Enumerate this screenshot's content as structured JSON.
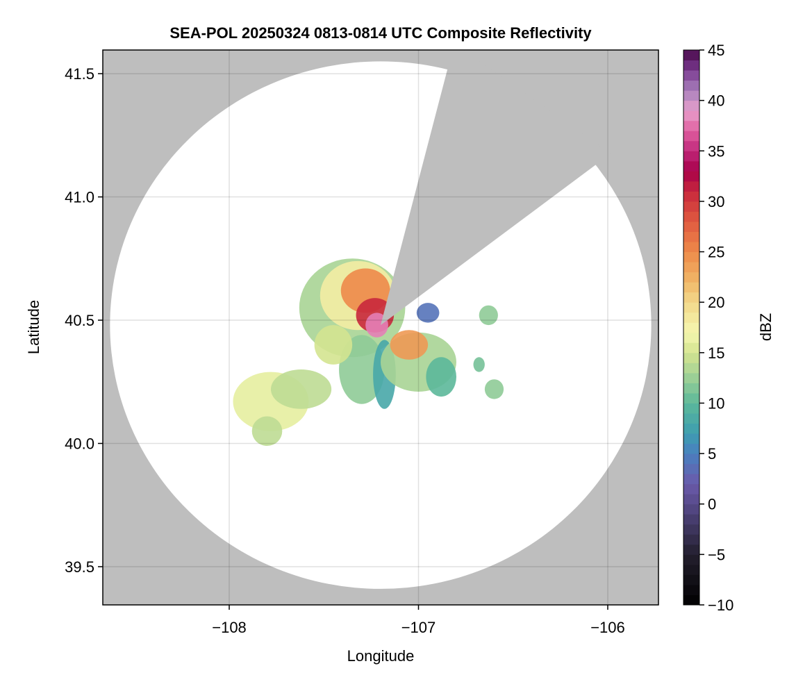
{
  "chart_data": {
    "type": "heatmap",
    "title": "SEA-POL 20250324 0813-0814 UTC Composite Reflectivity",
    "xlabel": "Longitude",
    "ylabel": "Latitude",
    "xlim": [
      -108.668,
      -105.732
    ],
    "ylim": [
      39.345,
      41.596
    ],
    "xticks": [
      -108,
      -107,
      -106
    ],
    "xtick_labels": [
      "−108",
      "−107",
      "−106"
    ],
    "yticks": [
      39.5,
      40.0,
      40.5,
      41.0,
      41.5
    ],
    "ytick_labels": [
      "39.5",
      "40.0",
      "40.5",
      "41.0",
      "41.5"
    ],
    "grid": true,
    "background_color": "#bebebe",
    "radar_site": {
      "lon": -107.2,
      "lat": 40.48
    },
    "radar_coverage_radius_deg": {
      "lon": 1.43,
      "lat": 1.07
    },
    "blocked_sector_azimuth_deg": [
      15,
      54
    ],
    "colorbar": {
      "label": "dBZ",
      "range": [
        -10,
        45
      ],
      "ticks": [
        -10,
        -5,
        0,
        5,
        10,
        15,
        20,
        25,
        30,
        35,
        40,
        45
      ],
      "tick_labels": [
        "−10",
        "−5",
        "0",
        "5",
        "10",
        "15",
        "20",
        "25",
        "30",
        "35",
        "40",
        "45"
      ],
      "stops": [
        [
          -10,
          "#000000"
        ],
        [
          -5,
          "#231f2e"
        ],
        [
          0,
          "#574a8a"
        ],
        [
          2,
          "#6a5aaa"
        ],
        [
          5,
          "#4a7fc0"
        ],
        [
          7,
          "#3e9eb0"
        ],
        [
          10,
          "#5cb89a"
        ],
        [
          13,
          "#a8d495"
        ],
        [
          15,
          "#d4e490"
        ],
        [
          17,
          "#f5f7b0"
        ],
        [
          20,
          "#f2d88a"
        ],
        [
          22,
          "#f0b868"
        ],
        [
          25,
          "#ed8a4a"
        ],
        [
          28,
          "#e05a40"
        ],
        [
          31,
          "#c8283c"
        ],
        [
          33,
          "#a8004a"
        ],
        [
          35,
          "#c0287a"
        ],
        [
          37,
          "#e060a0"
        ],
        [
          39,
          "#e8a0cc"
        ],
        [
          41,
          "#a880bc"
        ],
        [
          43,
          "#7a3a90"
        ],
        [
          45,
          "#4a0a4a"
        ]
      ]
    },
    "echoes": [
      {
        "lon": -107.35,
        "lat": 40.55,
        "rlon": 0.28,
        "rlat": 0.2,
        "dbz": 13
      },
      {
        "lon": -107.32,
        "lat": 40.6,
        "rlon": 0.2,
        "rlat": 0.14,
        "dbz": 18
      },
      {
        "lon": -107.28,
        "lat": 40.62,
        "rlon": 0.13,
        "rlat": 0.09,
        "dbz": 25
      },
      {
        "lon": -107.23,
        "lat": 40.52,
        "rlon": 0.1,
        "rlat": 0.07,
        "dbz": 31
      },
      {
        "lon": -107.22,
        "lat": 40.48,
        "rlon": 0.06,
        "rlat": 0.05,
        "dbz": 38
      },
      {
        "lon": -107.78,
        "lat": 40.17,
        "rlon": 0.2,
        "rlat": 0.12,
        "dbz": 16
      },
      {
        "lon": -107.62,
        "lat": 40.22,
        "rlon": 0.16,
        "rlat": 0.08,
        "dbz": 14
      },
      {
        "lon": -107.8,
        "lat": 40.05,
        "rlon": 0.08,
        "rlat": 0.06,
        "dbz": 14
      },
      {
        "lon": -107.3,
        "lat": 40.3,
        "rlon": 0.12,
        "rlat": 0.14,
        "dbz": 12
      },
      {
        "lon": -107.18,
        "lat": 40.28,
        "rlon": 0.06,
        "rlat": 0.14,
        "dbz": 8
      },
      {
        "lon": -107.0,
        "lat": 40.33,
        "rlon": 0.2,
        "rlat": 0.12,
        "dbz": 13
      },
      {
        "lon": -107.05,
        "lat": 40.4,
        "rlon": 0.1,
        "rlat": 0.06,
        "dbz": 24
      },
      {
        "lon": -106.88,
        "lat": 40.27,
        "rlon": 0.08,
        "rlat": 0.08,
        "dbz": 10
      },
      {
        "lon": -107.45,
        "lat": 40.4,
        "rlon": 0.1,
        "rlat": 0.08,
        "dbz": 15
      },
      {
        "lon": -106.63,
        "lat": 40.52,
        "rlon": 0.05,
        "rlat": 0.04,
        "dbz": 12
      },
      {
        "lon": -106.6,
        "lat": 40.22,
        "rlon": 0.05,
        "rlat": 0.04,
        "dbz": 12
      },
      {
        "lon": -106.68,
        "lat": 40.32,
        "rlon": 0.03,
        "rlat": 0.03,
        "dbz": 11
      },
      {
        "lon": -106.95,
        "lat": 40.53,
        "rlon": 0.06,
        "rlat": 0.04,
        "dbz": 4
      }
    ]
  }
}
